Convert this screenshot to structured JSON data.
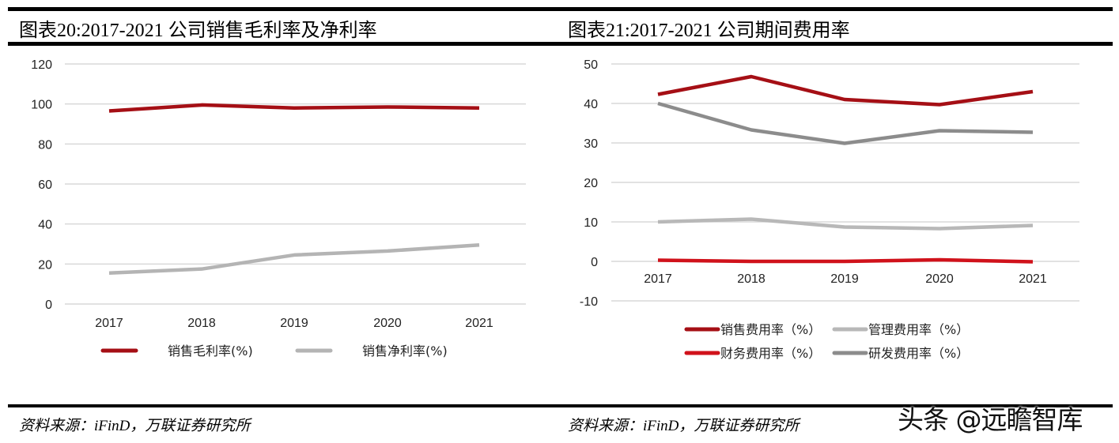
{
  "left": {
    "title": "图表20:2017-2021 公司销售毛利率及净利率",
    "source": "资料来源：iFinD，万联证券研究所"
  },
  "right": {
    "title": "图表21:2017-2021 公司期间费用率",
    "source": "资料来源：iFinD，万联证券研究所"
  },
  "watermark": "头条 @远瞻智库",
  "chart_data": [
    {
      "type": "line",
      "categories": [
        "2017",
        "2018",
        "2019",
        "2020",
        "2021"
      ],
      "ylim": [
        0,
        120
      ],
      "yticks": [
        0,
        20,
        40,
        60,
        80,
        100,
        120
      ],
      "grid": true,
      "legend": "bottom",
      "series": [
        {
          "name": "销售毛利率(%)",
          "color": "#a50f15",
          "values": [
            96.5,
            99.5,
            98,
            98.5,
            98
          ]
        },
        {
          "name": "销售净利率(%)",
          "color": "#b4b4b4",
          "values": [
            15.5,
            17.5,
            24.5,
            26.5,
            29.5
          ]
        }
      ]
    },
    {
      "type": "line",
      "categories": [
        "2017",
        "2018",
        "2019",
        "2020",
        "2021"
      ],
      "ylim": [
        -10,
        50
      ],
      "yticks": [
        -10,
        0,
        10,
        20,
        30,
        40,
        50
      ],
      "grid": true,
      "legend": "bottom",
      "series": [
        {
          "name": "销售费用率（%）",
          "color": "#a50f15",
          "values": [
            42.3,
            46.8,
            41,
            39.7,
            43
          ]
        },
        {
          "name": "管理费用率（%）",
          "color": "#b8b8b8",
          "values": [
            10,
            10.7,
            8.7,
            8.3,
            9.1
          ]
        },
        {
          "name": "财务费用率（%）",
          "color": "#d0121b",
          "values": [
            0.3,
            0,
            0,
            0.4,
            -0.1
          ]
        },
        {
          "name": "研发费用率（%）",
          "color": "#8c8c8c",
          "values": [
            40,
            33.3,
            29.9,
            33.1,
            32.7
          ]
        }
      ]
    }
  ]
}
